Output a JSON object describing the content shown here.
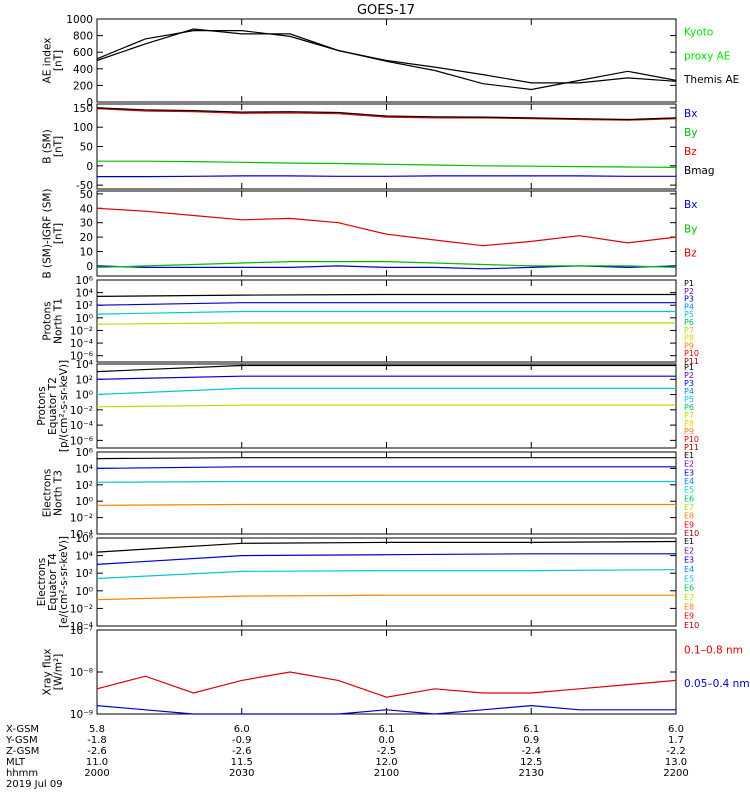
{
  "title": "GOES-17",
  "panels": [
    {
      "key": "ae",
      "ylabel": [
        "AE index",
        "[nT]"
      ],
      "scale": "linear",
      "ylim": [
        0,
        1000
      ],
      "yticks": [
        "1000",
        "800",
        "600",
        "400",
        "200",
        "0"
      ],
      "yticks_values": [
        1000,
        800,
        600,
        400,
        200,
        0
      ],
      "legend": [
        {
          "text": "Kyoto",
          "color": "#00e000"
        },
        {
          "text": "proxy AE",
          "color": "#00e000"
        },
        {
          "text": "Themis AE",
          "color": "#000000"
        }
      ]
    },
    {
      "key": "bsm",
      "ylabel": [
        "B (SM)",
        "[nT]"
      ],
      "scale": "linear",
      "ylim": [
        -60,
        160
      ],
      "yticks": [
        "150",
        "100",
        "50",
        "0",
        "-50"
      ],
      "yticks_values": [
        150,
        100,
        50,
        0,
        -50
      ],
      "legend": [
        {
          "text": "Bx",
          "color": "#0000cc"
        },
        {
          "text": "By",
          "color": "#00c000"
        },
        {
          "text": "Bz",
          "color": "#dd0000"
        },
        {
          "text": "Bmag",
          "color": "#000000"
        }
      ]
    },
    {
      "key": "bigrf",
      "ylabel": [
        "B (SM)-IGRF (SM)",
        "[nT]"
      ],
      "scale": "linear",
      "ylim": [
        -7,
        52
      ],
      "yticks": [
        "50",
        "40",
        "30",
        "20",
        "10",
        "0"
      ],
      "yticks_values": [
        50,
        40,
        30,
        20,
        10,
        0
      ],
      "legend": [
        {
          "text": "Bx",
          "color": "#0000cc"
        },
        {
          "text": "By",
          "color": "#00c000"
        },
        {
          "text": "Bz",
          "color": "#dd0000"
        }
      ]
    },
    {
      "key": "p_north",
      "ylabel": [
        "Protons",
        "North T1"
      ],
      "scale": "log",
      "ylim": [
        -7,
        6
      ],
      "yticks": [
        "10⁶",
        "10⁴",
        "10²",
        "10⁰",
        "10⁻²",
        "10⁻⁴",
        "10⁻⁶"
      ],
      "yticks_values": [
        6,
        4,
        2,
        0,
        -2,
        -4,
        -6
      ],
      "legend": [
        {
          "text": "P1",
          "color": "#000000"
        },
        {
          "text": "P2",
          "color": "#7a00a0"
        },
        {
          "text": "P3",
          "color": "#0000cc"
        },
        {
          "text": "P4",
          "color": "#0080ff"
        },
        {
          "text": "P5",
          "color": "#00c8d0"
        },
        {
          "text": "P6",
          "color": "#00c060"
        },
        {
          "text": "P7",
          "color": "#b0e000"
        },
        {
          "text": "P8",
          "color": "#e8d000"
        },
        {
          "text": "P9",
          "color": "#ff8000"
        },
        {
          "text": "P10",
          "color": "#dd0000"
        },
        {
          "text": "P11",
          "color": "#a00000"
        }
      ]
    },
    {
      "key": "p_equator",
      "ylabel": [
        "Protons",
        "Equator T2",
        "[p/(cm²-s-sr-keV)]"
      ],
      "scale": "log",
      "ylim": [
        -7,
        4
      ],
      "yticks": [
        "10⁴",
        "10²",
        "10⁰",
        "10⁻²",
        "10⁻⁴",
        "10⁻⁶"
      ],
      "yticks_values": [
        4,
        2,
        0,
        -2,
        -4,
        -6
      ],
      "legend": [
        {
          "text": "P1",
          "color": "#000000"
        },
        {
          "text": "P2",
          "color": "#7a00a0"
        },
        {
          "text": "P3",
          "color": "#0000cc"
        },
        {
          "text": "P4",
          "color": "#0080ff"
        },
        {
          "text": "P5",
          "color": "#00c8d0"
        },
        {
          "text": "P6",
          "color": "#00c060"
        },
        {
          "text": "P7",
          "color": "#b0e000"
        },
        {
          "text": "P8",
          "color": "#e8d000"
        },
        {
          "text": "P9",
          "color": "#ff8000"
        },
        {
          "text": "P10",
          "color": "#dd0000"
        },
        {
          "text": "P11",
          "color": "#a00000"
        }
      ]
    },
    {
      "key": "e_north",
      "ylabel": [
        "Electrons",
        "North T3"
      ],
      "scale": "log",
      "ylim": [
        -4,
        6
      ],
      "yticks": [
        "10⁶",
        "10⁴",
        "10²",
        "10⁰",
        "10⁻²",
        "10⁻⁴"
      ],
      "yticks_values": [
        6,
        4,
        2,
        0,
        -2,
        -4
      ],
      "legend": [
        {
          "text": "E1",
          "color": "#000000"
        },
        {
          "text": "E2",
          "color": "#7a00a0"
        },
        {
          "text": "E3",
          "color": "#0000cc"
        },
        {
          "text": "E4",
          "color": "#0080ff"
        },
        {
          "text": "E5",
          "color": "#00c8d0"
        },
        {
          "text": "E6",
          "color": "#00c060"
        },
        {
          "text": "E7",
          "color": "#b0e000"
        },
        {
          "text": "E8",
          "color": "#ff8000"
        },
        {
          "text": "E9",
          "color": "#dd0000"
        },
        {
          "text": "E10",
          "color": "#a00000"
        }
      ]
    },
    {
      "key": "e_equator",
      "ylabel": [
        "Electrons",
        "Equator T4",
        "[e/(cm²-s-sr-keV)]"
      ],
      "scale": "log",
      "ylim": [
        -4,
        6
      ],
      "yticks": [
        "10⁶",
        "10⁴",
        "10²",
        "10⁰",
        "10⁻²",
        "10⁻⁴"
      ],
      "yticks_values": [
        6,
        4,
        2,
        0,
        -2,
        -4
      ],
      "legend": [
        {
          "text": "E1",
          "color": "#000000"
        },
        {
          "text": "E2",
          "color": "#7a00a0"
        },
        {
          "text": "E3",
          "color": "#0000cc"
        },
        {
          "text": "E4",
          "color": "#0080ff"
        },
        {
          "text": "E5",
          "color": "#00c8d0"
        },
        {
          "text": "E6",
          "color": "#00c060"
        },
        {
          "text": "E7",
          "color": "#b0e000"
        },
        {
          "text": "E8",
          "color": "#ff8000"
        },
        {
          "text": "E9",
          "color": "#dd0000"
        },
        {
          "text": "E10",
          "color": "#a00000"
        }
      ]
    },
    {
      "key": "xray",
      "ylabel": [
        "Xray flux",
        "[W/m²]"
      ],
      "scale": "log",
      "ylim": [
        -9,
        -7
      ],
      "yticks": [
        "10⁻⁷",
        "10⁻⁸",
        "10⁻⁹"
      ],
      "yticks_values": [
        -7,
        -8,
        -9
      ],
      "legend": [
        {
          "text": "0.1–0.8 nm",
          "color": "#dd0000"
        },
        {
          "text": "0.05–0.4 nm",
          "color": "#0000cc"
        }
      ]
    }
  ],
  "footer": {
    "row_labels": [
      "X-GSM",
      "Y-GSM",
      "Z-GSM",
      "MLT",
      "hhmm",
      "2019 Jul 09"
    ],
    "columns": [
      [
        "5.8",
        "-1.8",
        "-2.6",
        "11.0",
        "2000"
      ],
      [
        "6.0",
        "-0.9",
        "-2.6",
        "11.5",
        "2030"
      ],
      [
        "6.1",
        "0.0",
        "-2.5",
        "12.0",
        "2100"
      ],
      [
        "6.1",
        "0.9",
        "-2.4",
        "12.5",
        "2130"
      ],
      [
        "6.0",
        "1.7",
        "-2.2",
        "13.0",
        "2200"
      ]
    ]
  },
  "chart_data": [
    {
      "type": "line",
      "title": "GOES-17",
      "ylabel": "AE index [nT]",
      "x": [
        "2000",
        "2010",
        "2020",
        "2030",
        "2040",
        "2050",
        "2100",
        "2110",
        "2120",
        "2130",
        "2140",
        "2150",
        "2200"
      ],
      "series": [
        {
          "name": "Themis AE",
          "values": [
            520,
            760,
            860,
            860,
            790,
            620,
            490,
            380,
            220,
            150,
            260,
            370,
            260
          ]
        },
        {
          "name": "Kyoto proxy AE",
          "values": [
            500,
            700,
            880,
            820,
            820,
            620,
            500,
            420,
            330,
            230,
            230,
            290,
            250
          ]
        }
      ],
      "ylim": [
        0,
        1000
      ]
    },
    {
      "type": "line",
      "ylabel": "B (SM) [nT]",
      "x": [
        "2000",
        "2010",
        "2020",
        "2030",
        "2040",
        "2050",
        "2100",
        "2110",
        "2120",
        "2130",
        "2140",
        "2150",
        "2200"
      ],
      "series": [
        {
          "name": "Bx",
          "values": [
            -28,
            -28,
            -27,
            -26,
            -26,
            -27,
            -27,
            -26,
            -26,
            -26,
            -26,
            -27,
            -27
          ]
        },
        {
          "name": "By",
          "values": [
            12,
            12,
            11,
            9,
            7,
            6,
            4,
            2,
            0,
            -1,
            -2,
            -3,
            -4
          ]
        },
        {
          "name": "Bz",
          "values": [
            148,
            142,
            140,
            136,
            137,
            135,
            126,
            124,
            124,
            122,
            120,
            118,
            122
          ]
        },
        {
          "name": "Bmag",
          "values": [
            150,
            145,
            143,
            139,
            140,
            138,
            129,
            127,
            126,
            124,
            122,
            120,
            124
          ]
        }
      ],
      "ylim": [
        -60,
        160
      ]
    },
    {
      "type": "line",
      "ylabel": "B (SM)-IGRF (SM) [nT]",
      "x": [
        "2000",
        "2010",
        "2020",
        "2030",
        "2040",
        "2050",
        "2100",
        "2110",
        "2120",
        "2130",
        "2140",
        "2150",
        "2200"
      ],
      "series": [
        {
          "name": "Bx",
          "values": [
            0,
            -1,
            -1,
            -1,
            -1,
            0,
            -1,
            -1,
            -2,
            -1,
            0,
            -1,
            0
          ]
        },
        {
          "name": "By",
          "values": [
            -1,
            0,
            1,
            2,
            3,
            3,
            3,
            2,
            1,
            0,
            0,
            0,
            -1
          ]
        },
        {
          "name": "Bz",
          "values": [
            40,
            38,
            35,
            32,
            33,
            30,
            22,
            18,
            14,
            17,
            21,
            16,
            20
          ]
        }
      ],
      "ylim": [
        -7,
        52
      ]
    },
    {
      "type": "line",
      "ylabel": "Protons North T1",
      "x": [
        "2000",
        "2030",
        "2100",
        "2130",
        "2200"
      ],
      "series": [
        {
          "name": "P1",
          "values": [
            3.4,
            3.6,
            3.7,
            3.7,
            3.7
          ]
        },
        {
          "name": "P3",
          "values": [
            2.0,
            2.4,
            2.4,
            2.4,
            2.4
          ]
        },
        {
          "name": "P5",
          "values": [
            0.6,
            1.0,
            1.0,
            1.0,
            1.0
          ]
        },
        {
          "name": "P7",
          "values": [
            -1.0,
            -0.8,
            -0.8,
            -0.8,
            -0.8
          ]
        }
      ],
      "ylim": [
        -7,
        6
      ]
    },
    {
      "type": "line",
      "ylabel": "Protons Equator T2 [p/(cm²-s-sr-keV)]",
      "x": [
        "2000",
        "2030",
        "2100",
        "2130",
        "2200"
      ],
      "series": [
        {
          "name": "P1",
          "values": [
            3.0,
            3.8,
            3.8,
            3.8,
            3.8
          ]
        },
        {
          "name": "P3",
          "values": [
            2.0,
            2.4,
            2.4,
            2.4,
            2.4
          ]
        },
        {
          "name": "P5",
          "values": [
            0.0,
            0.8,
            0.8,
            0.8,
            0.8
          ]
        },
        {
          "name": "P7",
          "values": [
            -1.6,
            -1.4,
            -1.4,
            -1.4,
            -1.4
          ]
        }
      ],
      "ylim": [
        -7,
        4
      ]
    },
    {
      "type": "line",
      "ylabel": "Electrons North T3",
      "x": [
        "2000",
        "2030",
        "2100",
        "2130",
        "2200"
      ],
      "series": [
        {
          "name": "E1",
          "values": [
            5.2,
            5.3,
            5.3,
            5.3,
            5.3
          ]
        },
        {
          "name": "E3",
          "values": [
            4.0,
            4.2,
            4.2,
            4.2,
            4.2
          ]
        },
        {
          "name": "E5",
          "values": [
            2.3,
            2.4,
            2.4,
            2.4,
            2.4
          ]
        },
        {
          "name": "E8",
          "values": [
            -0.5,
            -0.4,
            -0.4,
            -0.4,
            -0.4
          ]
        }
      ],
      "ylim": [
        -4,
        6
      ]
    },
    {
      "type": "line",
      "ylabel": "Electrons Equator T4 [e/(cm²-s-sr-keV)]",
      "x": [
        "2000",
        "2030",
        "2100",
        "2130",
        "2200"
      ],
      "series": [
        {
          "name": "E1",
          "values": [
            4.4,
            5.4,
            5.5,
            5.5,
            5.6
          ]
        },
        {
          "name": "E3",
          "values": [
            3.0,
            4.0,
            4.1,
            4.2,
            4.2
          ]
        },
        {
          "name": "E5",
          "values": [
            1.4,
            2.2,
            2.3,
            2.3,
            2.4
          ]
        },
        {
          "name": "E8",
          "values": [
            -1.0,
            -0.6,
            -0.5,
            -0.5,
            -0.5
          ]
        }
      ],
      "ylim": [
        -4,
        6
      ]
    },
    {
      "type": "line",
      "ylabel": "Xray flux [W/m²]",
      "x": [
        "2000",
        "2010",
        "2020",
        "2030",
        "2040",
        "2050",
        "2100",
        "2110",
        "2120",
        "2130",
        "2140",
        "2150",
        "2200"
      ],
      "series": [
        {
          "name": "0.1–0.8 nm",
          "values": [
            -8.4,
            -8.1,
            -8.5,
            -8.2,
            -8.0,
            -8.2,
            -8.6,
            -8.4,
            -8.5,
            -8.5,
            -8.4,
            -8.3,
            -8.2
          ]
        },
        {
          "name": "0.05–0.4 nm",
          "values": [
            -8.8,
            -8.9,
            -9.0,
            -9.0,
            -9.0,
            -9.0,
            -8.9,
            -9.0,
            -8.9,
            -8.8,
            -8.9,
            -8.9,
            -8.9
          ]
        }
      ],
      "ylim": [
        -9,
        -7
      ]
    }
  ]
}
